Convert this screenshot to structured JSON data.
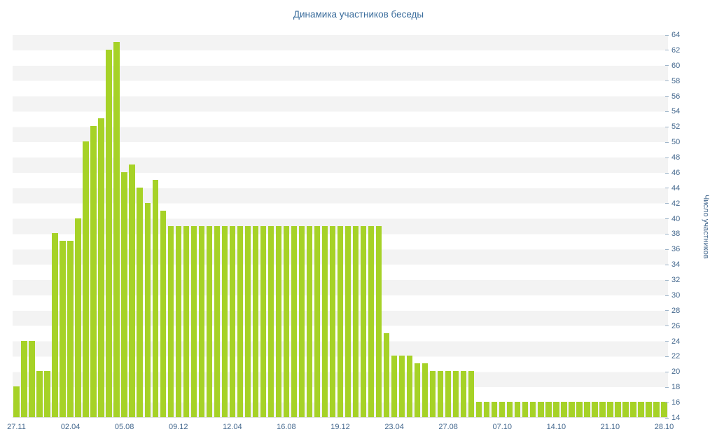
{
  "chart_data": {
    "type": "bar",
    "title": "Динамика участников беседы",
    "ylabel": "Число участников",
    "xlabel": "",
    "ylim": [
      14,
      64
    ],
    "y_tick_step": 2,
    "grid": "horizontal-stripes",
    "legend": "none",
    "bar_color": "#a6d227",
    "stripe_color": "#f3f3f3",
    "text_color": "#44688e",
    "title_color": "#3b6d9c",
    "x_tick_labels": [
      "27.11",
      "02.04",
      "05.08",
      "09.12",
      "12.04",
      "16.08",
      "19.12",
      "23.04",
      "27.08",
      "07.10",
      "14.10",
      "21.10",
      "28.10"
    ],
    "x_tick_every": 7,
    "values": [
      18,
      24,
      24,
      20,
      20,
      38,
      37,
      37,
      40,
      50,
      52,
      53,
      62,
      63,
      46,
      47,
      44,
      42,
      45,
      41,
      39,
      39,
      39,
      39,
      39,
      39,
      39,
      39,
      39,
      39,
      39,
      39,
      39,
      39,
      39,
      39,
      39,
      39,
      39,
      39,
      39,
      39,
      39,
      39,
      39,
      39,
      39,
      39,
      25,
      22,
      22,
      22,
      21,
      21,
      20,
      20,
      20,
      20,
      20,
      20,
      16,
      16,
      16,
      16,
      16,
      16,
      16,
      16,
      16,
      16,
      16,
      16,
      16,
      16,
      16,
      16,
      16,
      16,
      16,
      16,
      16,
      16,
      16,
      16,
      16
    ]
  }
}
